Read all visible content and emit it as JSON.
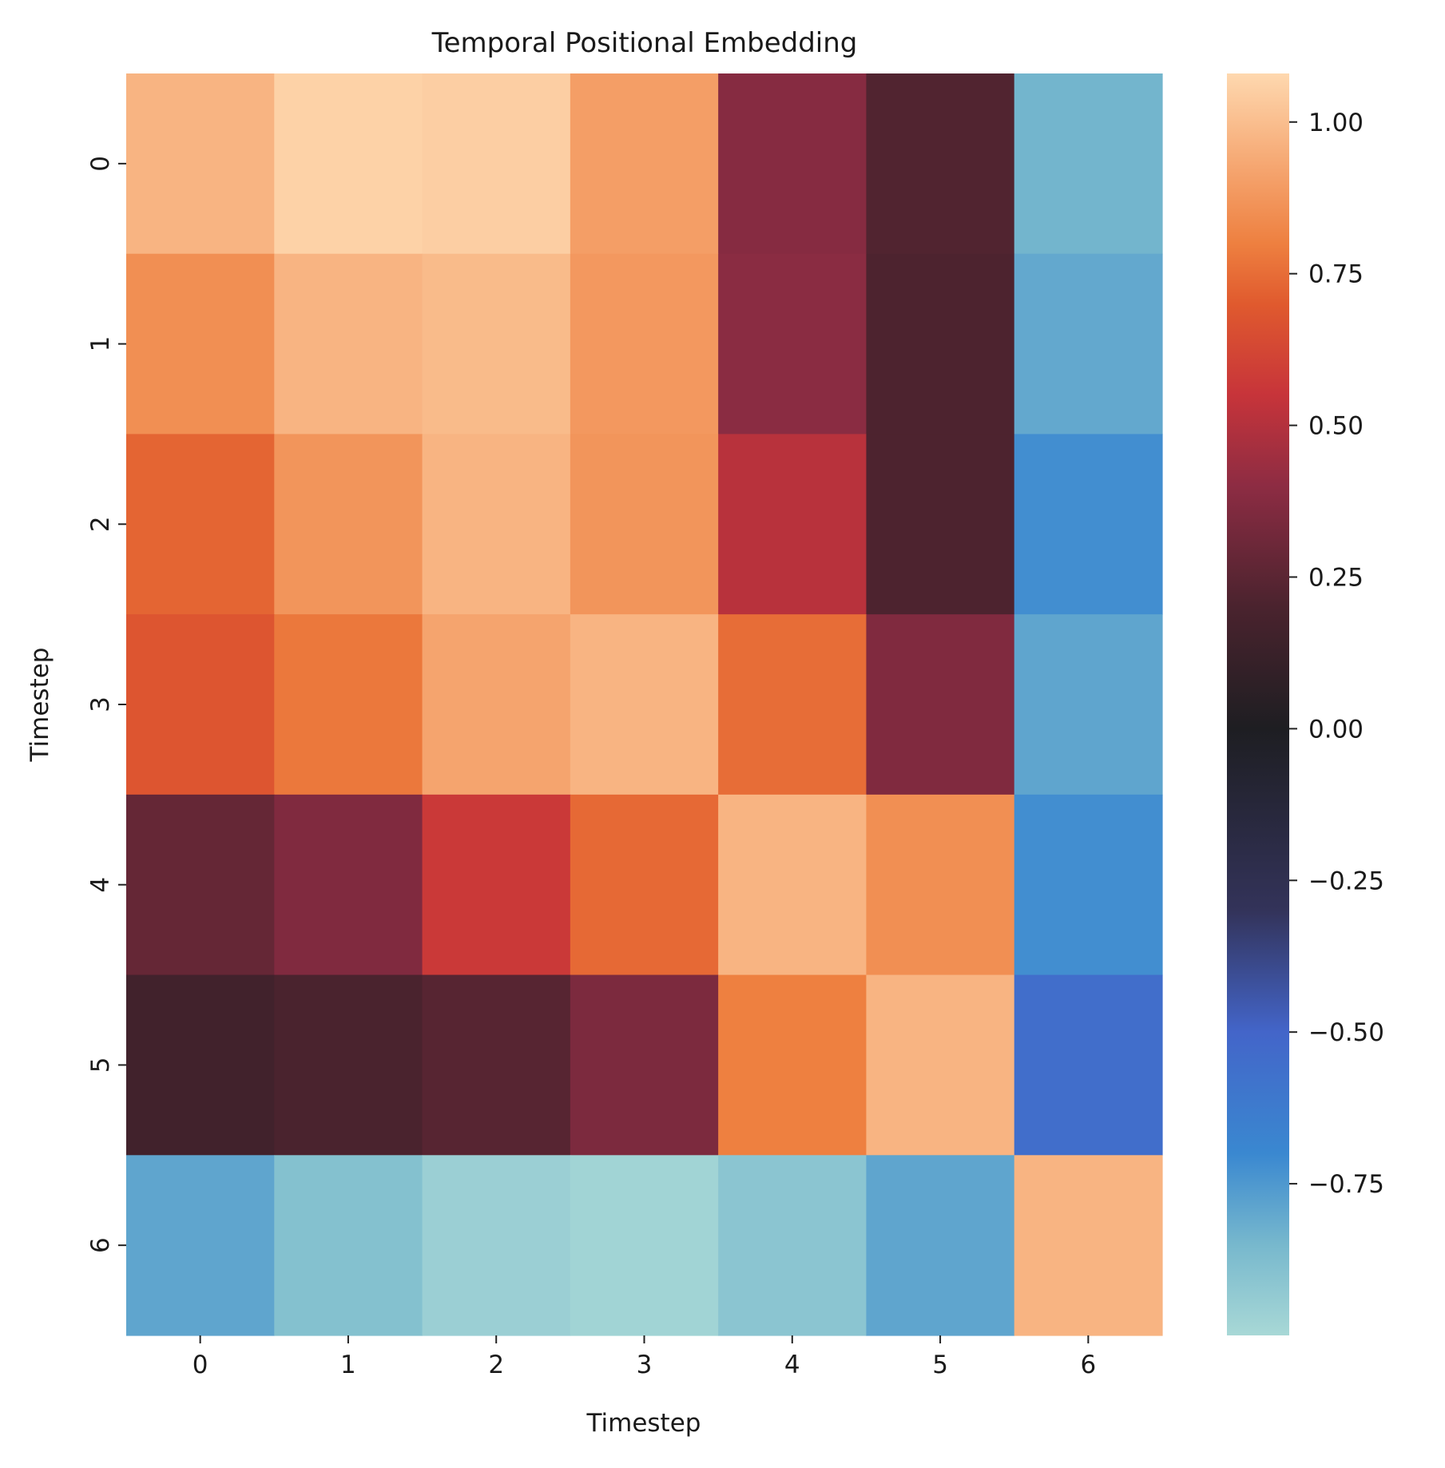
{
  "chart_data": {
    "type": "heatmap",
    "title": "Temporal Positional Embedding",
    "xlabel": "Timestep",
    "ylabel": "Timestep",
    "x_categories": [
      "0",
      "1",
      "2",
      "3",
      "4",
      "5",
      "6"
    ],
    "y_categories": [
      "0",
      "1",
      "2",
      "3",
      "4",
      "5",
      "6"
    ],
    "values": [
      [
        0.97,
        1.06,
        1.05,
        0.9,
        0.38,
        0.22,
        -0.84
      ],
      [
        0.85,
        0.97,
        0.99,
        0.88,
        0.39,
        0.21,
        -0.8
      ],
      [
        0.73,
        0.87,
        0.97,
        0.87,
        0.51,
        0.21,
        -0.72
      ],
      [
        0.68,
        0.78,
        0.92,
        0.97,
        0.75,
        0.36,
        -0.79
      ],
      [
        0.28,
        0.36,
        0.57,
        0.74,
        0.97,
        0.85,
        -0.72
      ],
      [
        0.16,
        0.2,
        0.24,
        0.35,
        0.8,
        0.97,
        -0.55
      ],
      [
        -0.79,
        -0.89,
        -0.96,
        -0.98,
        -0.91,
        -0.79,
        0.97
      ]
    ],
    "colorbar": {
      "min": -1.0,
      "max": 1.08,
      "ticks": [
        1.0,
        0.75,
        0.5,
        0.25,
        0.0,
        -0.25,
        -0.5,
        -0.75
      ],
      "tick_labels": [
        "1.00",
        "0.75",
        "0.50",
        "0.25",
        "0.00",
        "−0.25",
        "−0.50",
        "−0.75"
      ]
    },
    "colormap": "icefire",
    "colormap_stops": [
      [
        -1.0,
        "#a8d8d6"
      ],
      [
        -0.85,
        "#77b8cd"
      ],
      [
        -0.7,
        "#3a88d0"
      ],
      [
        -0.5,
        "#4365c9"
      ],
      [
        -0.3,
        "#33335a"
      ],
      [
        0.0,
        "#1e1e22"
      ],
      [
        0.2,
        "#4a232e"
      ],
      [
        0.4,
        "#8d2c43"
      ],
      [
        0.55,
        "#c7343a"
      ],
      [
        0.7,
        "#e05a2e"
      ],
      [
        0.8,
        "#ee8040"
      ],
      [
        0.92,
        "#f5a46e"
      ],
      [
        1.08,
        "#fed8af"
      ]
    ],
    "grid": false,
    "legend": "colorbar-right"
  }
}
